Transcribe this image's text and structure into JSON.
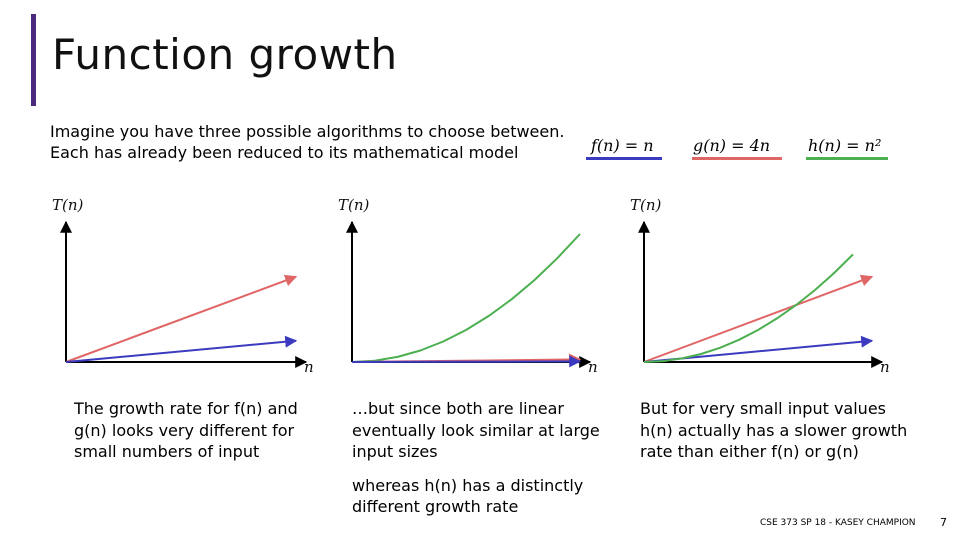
{
  "slide": {
    "title": "Function growth",
    "intro": [
      "Imagine you have three possible algorithms to choose between.",
      "Each has already been reduced to its mathematical model"
    ],
    "equations": [
      {
        "label": "f(n) = n",
        "color": "#3b3bbf"
      },
      {
        "label": "g(n) = 4n",
        "color": "#e06666"
      },
      {
        "label": "h(n) = n²",
        "color": "#4caf50"
      }
    ],
    "captions": {
      "left": "The growth rate for f(n) and g(n) looks very different for small numbers of input",
      "middle_1": "…but since both are linear eventually look similar at large input sizes",
      "middle_2": "whereas h(n) has a distinctly different growth rate",
      "right": "But for very small input values h(n) actually has a slower growth rate than either f(n) or g(n)"
    },
    "footer": "CSE 373 SP 18 - KASEY CHAMPION",
    "page_number": "7",
    "accent_color": "#4b2a7d"
  },
  "chart_data": [
    {
      "type": "line",
      "title": "",
      "ylabel": "T(n)",
      "xlabel": "n",
      "xlim": [
        0,
        10
      ],
      "ylim": [
        0,
        60
      ],
      "series": [
        {
          "name": "g(n) = 4n",
          "color": "#e06666",
          "x": [
            0,
            10
          ],
          "y": [
            0,
            40
          ]
        },
        {
          "name": "f(n) = n",
          "color": "#3b3bbf",
          "x": [
            0,
            10
          ],
          "y": [
            0,
            10
          ]
        }
      ]
    },
    {
      "type": "line",
      "title": "",
      "ylabel": "T(n)",
      "xlabel": "n",
      "xlim": [
        0,
        200
      ],
      "ylim": [
        0,
        40000
      ],
      "series": [
        {
          "name": "h(n) = n²",
          "color": "#4caf50",
          "x": [
            0,
            20,
            40,
            60,
            80,
            100,
            120,
            140,
            160,
            180,
            200
          ],
          "y": [
            0,
            400,
            1600,
            3600,
            6400,
            10000,
            14400,
            19600,
            25600,
            32400,
            40000
          ]
        },
        {
          "name": "g(n) = 4n",
          "color": "#e06666",
          "x": [
            0,
            200
          ],
          "y": [
            0,
            800
          ]
        },
        {
          "name": "f(n) = n",
          "color": "#3b3bbf",
          "x": [
            0,
            200
          ],
          "y": [
            0,
            200
          ]
        }
      ]
    },
    {
      "type": "line",
      "title": "",
      "ylabel": "T(n)",
      "xlabel": "n",
      "xlim": [
        0,
        6
      ],
      "ylim": [
        0,
        36
      ],
      "series": [
        {
          "name": "g(n) = 4n",
          "color": "#e06666",
          "x": [
            0,
            6
          ],
          "y": [
            0,
            24
          ]
        },
        {
          "name": "f(n) = n",
          "color": "#3b3bbf",
          "x": [
            0,
            6
          ],
          "y": [
            0,
            6
          ]
        },
        {
          "name": "h(n) = n²",
          "color": "#4caf50",
          "x": [
            0,
            0.5,
            1,
            1.5,
            2,
            2.5,
            3,
            3.5,
            4,
            4.5,
            5,
            5.5
          ],
          "y": [
            0,
            0.25,
            1,
            2.25,
            4,
            6.25,
            9,
            12.25,
            16,
            20.25,
            25,
            30.25
          ]
        }
      ]
    }
  ]
}
